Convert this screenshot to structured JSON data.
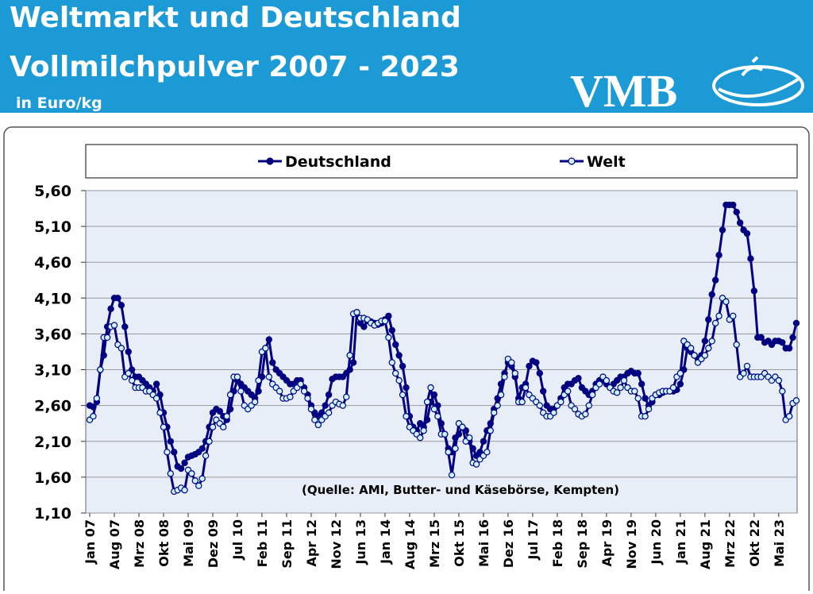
{
  "logo": "VMB",
  "chart_data": {
    "type": "line",
    "title": "Weltmarkt und Deutschland",
    "subtitle": "Vollmilchpulver 2007 - 2023",
    "y_unit": "in Euro/kg",
    "annotation": "(Quelle: AMI, Butter- und Käsebörse, Kempten)",
    "categories": [
      "Jan 07",
      null,
      null,
      null,
      null,
      null,
      null,
      "Aug 07",
      null,
      null,
      null,
      null,
      null,
      null,
      "Mrz 08",
      null,
      null,
      null,
      null,
      null,
      null,
      "Okt 08",
      null,
      null,
      null,
      null,
      null,
      null,
      "Mai 09",
      null,
      null,
      null,
      null,
      null,
      null,
      "Dez 09",
      null,
      null,
      null,
      null,
      null,
      null,
      "Jul 10",
      null,
      null,
      null,
      null,
      null,
      null,
      "Feb 11",
      null,
      null,
      null,
      null,
      null,
      null,
      "Sep 11",
      null,
      null,
      null,
      null,
      null,
      null,
      "Apr 12",
      null,
      null,
      null,
      null,
      null,
      null,
      "Nov 12",
      null,
      null,
      null,
      null,
      null,
      null,
      "Jun 13",
      null,
      null,
      null,
      null,
      null,
      null,
      "Jan 14",
      null,
      null,
      null,
      null,
      null,
      null,
      "Aug 14",
      null,
      null,
      null,
      null,
      null,
      null,
      "Mrz 15",
      null,
      null,
      null,
      null,
      null,
      null,
      "Okt 15",
      null,
      null,
      null,
      null,
      null,
      null,
      "Mai 16",
      null,
      null,
      null,
      null,
      null,
      null,
      "Dez 16",
      null,
      null,
      null,
      null,
      null,
      null,
      "Jul 17",
      null,
      null,
      null,
      null,
      null,
      null,
      "Feb 18",
      null,
      null,
      null,
      null,
      null,
      null,
      "Sep 18",
      null,
      null,
      null,
      null,
      null,
      null,
      "Apr 19",
      null,
      null,
      null,
      null,
      null,
      null,
      "Nov 19",
      null,
      null,
      null,
      null,
      null,
      null,
      "Jun 20",
      null,
      null,
      null,
      null,
      null,
      null,
      "Jan 21",
      null,
      null,
      null,
      null,
      null,
      null,
      "Aug 21",
      null,
      null,
      null,
      null,
      null,
      null,
      "Mrz 22",
      null,
      null,
      null,
      null,
      null,
      null,
      "Okt 22",
      null,
      null,
      null,
      null,
      null,
      null,
      "Mai 23",
      null,
      null,
      null,
      null,
      null
    ],
    "series": [
      {
        "name": "Deutschland",
        "color": "#000080",
        "marker_fill": "#000080",
        "values": [
          2.6,
          2.58,
          2.65,
          3.1,
          3.3,
          3.7,
          3.95,
          4.1,
          4.1,
          4.0,
          3.7,
          3.35,
          3.1,
          3.0,
          3.0,
          2.95,
          2.9,
          2.85,
          2.8,
          2.9,
          2.75,
          2.5,
          2.3,
          2.1,
          1.95,
          1.75,
          1.72,
          1.8,
          1.88,
          1.9,
          1.92,
          1.95,
          2.0,
          2.1,
          2.3,
          2.5,
          2.55,
          2.52,
          2.45,
          2.4,
          2.55,
          2.8,
          2.95,
          2.9,
          2.85,
          2.8,
          2.75,
          2.7,
          2.8,
          3.0,
          3.4,
          3.52,
          3.2,
          3.1,
          3.05,
          3.0,
          2.95,
          2.9,
          2.9,
          2.95,
          2.95,
          2.85,
          2.75,
          2.6,
          2.5,
          2.45,
          2.5,
          2.6,
          2.75,
          2.97,
          3.0,
          3.0,
          3.0,
          3.05,
          3.1,
          3.2,
          3.9,
          3.75,
          3.7,
          3.78,
          3.77,
          3.75,
          3.73,
          3.75,
          3.8,
          3.85,
          3.65,
          3.45,
          3.3,
          3.15,
          2.85,
          2.45,
          2.3,
          2.25,
          2.35,
          2.3,
          2.4,
          2.65,
          2.75,
          2.6,
          2.35,
          2.2,
          2.0,
          1.95,
          2.15,
          2.2,
          2.3,
          2.25,
          2.1,
          2.0,
          1.9,
          1.95,
          2.1,
          2.25,
          2.35,
          2.55,
          2.7,
          2.9,
          3.05,
          3.2,
          3.15,
          3.0,
          2.7,
          2.85,
          2.9,
          3.15,
          3.22,
          3.2,
          3.05,
          2.8,
          2.6,
          2.55,
          2.55,
          2.6,
          2.7,
          2.85,
          2.9,
          2.9,
          2.95,
          2.98,
          2.85,
          2.8,
          2.75,
          2.8,
          2.9,
          2.95,
          2.95,
          2.9,
          2.85,
          2.9,
          2.95,
          3.0,
          3.0,
          3.05,
          3.08,
          3.05,
          3.05,
          2.9,
          2.7,
          2.6,
          2.65,
          2.75,
          2.75,
          2.78,
          2.8,
          2.8,
          2.8,
          2.82,
          2.9,
          3.1,
          3.4,
          3.35,
          3.3,
          3.25,
          3.3,
          3.5,
          3.8,
          4.15,
          4.35,
          4.7,
          5.05,
          5.4,
          5.4,
          5.4,
          5.3,
          5.15,
          5.05,
          5.0,
          4.65,
          4.2,
          3.55,
          3.55,
          3.48,
          3.5,
          3.45,
          3.5,
          3.5,
          3.48,
          3.4,
          3.4,
          3.55,
          3.75
        ]
      },
      {
        "name": "Welt",
        "color": "#000080",
        "marker_fill": "#ccf2ff",
        "values": [
          2.4,
          2.45,
          2.7,
          3.1,
          3.55,
          3.55,
          3.7,
          3.72,
          3.45,
          3.4,
          3.0,
          3.05,
          2.95,
          2.85,
          2.85,
          2.85,
          2.8,
          2.8,
          2.75,
          2.7,
          2.5,
          2.3,
          1.95,
          1.65,
          1.4,
          1.42,
          1.45,
          1.42,
          1.7,
          1.65,
          1.55,
          1.48,
          1.58,
          1.9,
          2.1,
          2.3,
          2.4,
          2.35,
          2.3,
          2.45,
          2.75,
          3.0,
          3.0,
          2.8,
          2.6,
          2.55,
          2.6,
          2.65,
          2.95,
          3.35,
          3.4,
          3.0,
          2.9,
          2.85,
          2.8,
          2.7,
          2.7,
          2.72,
          2.8,
          2.85,
          2.9,
          2.8,
          2.7,
          2.55,
          2.4,
          2.33,
          2.4,
          2.45,
          2.5,
          2.6,
          2.65,
          2.62,
          2.6,
          2.72,
          3.3,
          3.88,
          3.9,
          3.82,
          3.82,
          3.8,
          3.75,
          3.72,
          3.75,
          3.78,
          3.78,
          3.55,
          3.2,
          3.05,
          2.95,
          2.75,
          2.45,
          2.3,
          2.25,
          2.2,
          2.15,
          2.25,
          2.65,
          2.85,
          2.55,
          2.45,
          2.2,
          2.2,
          1.95,
          1.63,
          2.0,
          2.35,
          2.3,
          2.1,
          2.15,
          1.8,
          1.78,
          1.85,
          1.9,
          1.95,
          2.25,
          2.5,
          2.6,
          2.75,
          3.0,
          3.25,
          3.2,
          3.05,
          2.65,
          2.65,
          2.85,
          2.75,
          2.7,
          2.65,
          2.6,
          2.5,
          2.45,
          2.45,
          2.5,
          2.6,
          2.65,
          2.75,
          2.8,
          2.6,
          2.55,
          2.48,
          2.45,
          2.48,
          2.6,
          2.75,
          2.85,
          2.9,
          3.0,
          2.95,
          2.85,
          2.8,
          2.78,
          2.85,
          2.95,
          2.85,
          2.8,
          2.8,
          2.7,
          2.45,
          2.45,
          2.55,
          2.7,
          2.75,
          2.78,
          2.8,
          2.8,
          2.8,
          2.85,
          3.0,
          3.05,
          3.5,
          3.45,
          3.4,
          3.3,
          3.2,
          3.25,
          3.3,
          3.4,
          3.5,
          3.75,
          3.85,
          4.1,
          4.05,
          3.8,
          3.85,
          3.45,
          3.0,
          3.05,
          3.15,
          3.0,
          3.0,
          3.0,
          3.0,
          3.05,
          3.0,
          2.95,
          3.0,
          2.95,
          2.8,
          2.4,
          2.45,
          2.63,
          2.67
        ]
      }
    ],
    "ylim": [
      1.1,
      5.6
    ],
    "yticks": [
      {
        "value": 1.1,
        "label": "1,10"
      },
      {
        "value": 1.6,
        "label": "1,60"
      },
      {
        "value": 2.1,
        "label": "2,10"
      },
      {
        "value": 2.6,
        "label": "2,60"
      },
      {
        "value": 3.1,
        "label": "3,10"
      },
      {
        "value": 3.6,
        "label": "3,60"
      },
      {
        "value": 4.1,
        "label": "4,10"
      },
      {
        "value": 4.6,
        "label": "4,60"
      },
      {
        "value": 5.1,
        "label": "5,10"
      },
      {
        "value": 5.6,
        "label": "5,60"
      }
    ],
    "grid": true,
    "legend": "top",
    "plot_background": "#e8eef8"
  }
}
